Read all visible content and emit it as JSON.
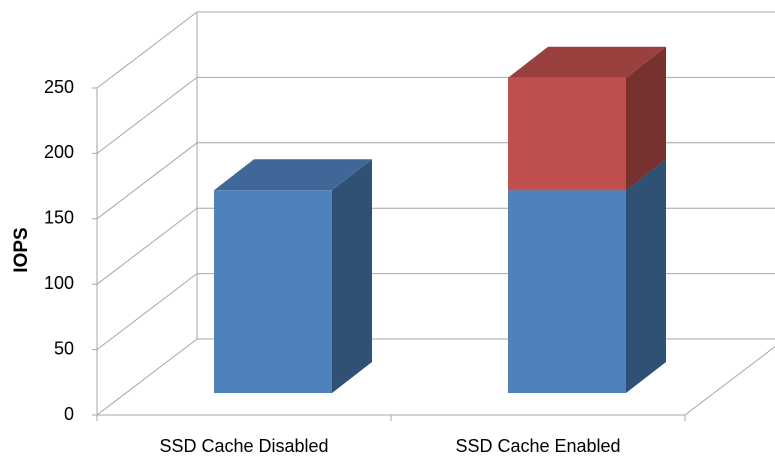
{
  "chart_data": {
    "type": "bar3d_stacked",
    "y_label": "IOPS",
    "categories": [
      "SSD Cache Disabled",
      "SSD Cache Enabled"
    ],
    "series": [
      {
        "color": "#4f81bd",
        "values": [
          155,
          155
        ]
      },
      {
        "color": "#c0504d",
        "values": [
          null,
          86
        ]
      }
    ],
    "ylim": [
      0,
      250
    ],
    "yticks": [
      0,
      50,
      100,
      150,
      200,
      250
    ],
    "grid": true
  }
}
